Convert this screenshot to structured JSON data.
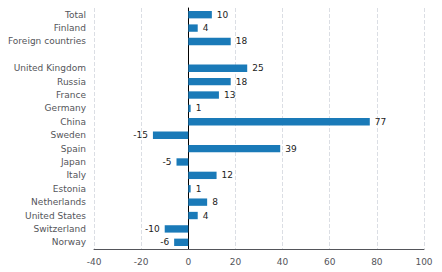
{
  "chart_data": {
    "type": "bar",
    "orientation": "horizontal",
    "categories": [
      "Total",
      "Finland",
      "Foreign countries",
      null,
      "United Kingdom",
      "Russia",
      "France",
      "Germany",
      "China",
      "Sweden",
      "Spain",
      "Japan",
      "Italy",
      "Estonia",
      "Netherlands",
      "United States",
      "Switzerland",
      "Norway"
    ],
    "values": [
      10,
      4,
      18,
      null,
      25,
      18,
      13,
      1,
      77,
      -15,
      39,
      -5,
      12,
      1,
      8,
      4,
      -10,
      -6
    ],
    "color": "#1a7ab8",
    "xlim": [
      -40,
      100
    ],
    "xticks": [
      -40,
      -20,
      0,
      20,
      40,
      60,
      80,
      100
    ],
    "grid": true,
    "data_labels": true
  }
}
